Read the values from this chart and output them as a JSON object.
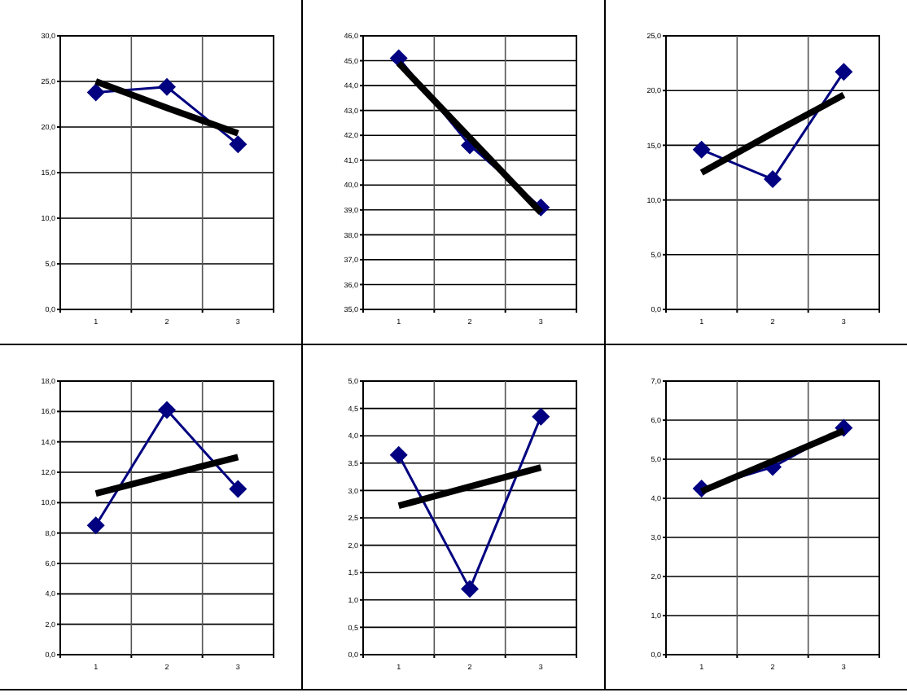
{
  "chart_data": [
    {
      "type": "line",
      "categories": [
        "1",
        "2",
        "3"
      ],
      "ylim": [
        0,
        30
      ],
      "yticks": [
        {
          "value": 0,
          "label": "0,0"
        },
        {
          "value": 5,
          "label": "5,0"
        },
        {
          "value": 10,
          "label": "10,0"
        },
        {
          "value": 15,
          "label": "15,0"
        },
        {
          "value": 20,
          "label": "20,0"
        },
        {
          "value": 25,
          "label": "25,0"
        },
        {
          "value": 30,
          "label": "30,0"
        }
      ],
      "grid": true,
      "series": [
        {
          "color": "#000080",
          "marker": "diamond",
          "values": [
            23.8,
            24.4,
            18.1
          ]
        },
        {
          "color": "#000000",
          "marker": "none",
          "values": [
            25.0,
            22.1,
            19.3
          ]
        }
      ]
    },
    {
      "type": "line",
      "categories": [
        "1",
        "2",
        "3"
      ],
      "ylim": [
        35,
        46
      ],
      "yticks": [
        {
          "value": 35,
          "label": "35,0"
        },
        {
          "value": 36,
          "label": "36,0"
        },
        {
          "value": 37,
          "label": "37,0"
        },
        {
          "value": 38,
          "label": "38,0"
        },
        {
          "value": 39,
          "label": "39,0"
        },
        {
          "value": 40,
          "label": "40,0"
        },
        {
          "value": 41,
          "label": "41,0"
        },
        {
          "value": 42,
          "label": "42,0"
        },
        {
          "value": 43,
          "label": "43,0"
        },
        {
          "value": 44,
          "label": "44,0"
        },
        {
          "value": 45,
          "label": "45,0"
        },
        {
          "value": 46,
          "label": "46,0"
        }
      ],
      "grid": true,
      "series": [
        {
          "color": "#000080",
          "marker": "diamond",
          "values": [
            45.1,
            41.6,
            39.1
          ]
        },
        {
          "color": "#000000",
          "marker": "none",
          "values": [
            44.9,
            41.9,
            38.9
          ]
        }
      ]
    },
    {
      "type": "line",
      "categories": [
        "1",
        "2",
        "3"
      ],
      "ylim": [
        0,
        25
      ],
      "yticks": [
        {
          "value": 0,
          "label": "0,0"
        },
        {
          "value": 5,
          "label": "5,0"
        },
        {
          "value": 10,
          "label": "10,0"
        },
        {
          "value": 15,
          "label": "15,0"
        },
        {
          "value": 20,
          "label": "20,0"
        },
        {
          "value": 25,
          "label": "25,0"
        }
      ],
      "grid": true,
      "series": [
        {
          "color": "#000080",
          "marker": "diamond",
          "values": [
            14.6,
            11.9,
            21.7
          ]
        },
        {
          "color": "#000000",
          "marker": "none",
          "values": [
            12.5,
            16.1,
            19.6
          ]
        }
      ]
    },
    {
      "type": "line",
      "categories": [
        "1",
        "2",
        "3"
      ],
      "ylim": [
        0,
        18
      ],
      "yticks": [
        {
          "value": 0,
          "label": "0,0"
        },
        {
          "value": 2,
          "label": "2,0"
        },
        {
          "value": 4,
          "label": "4,0"
        },
        {
          "value": 6,
          "label": "6,0"
        },
        {
          "value": 8,
          "label": "8,0"
        },
        {
          "value": 10,
          "label": "10,0"
        },
        {
          "value": 12,
          "label": "12,0"
        },
        {
          "value": 14,
          "label": "14,0"
        },
        {
          "value": 16,
          "label": "16,0"
        },
        {
          "value": 18,
          "label": "18,0"
        }
      ],
      "grid": true,
      "series": [
        {
          "color": "#000080",
          "marker": "diamond",
          "values": [
            8.5,
            16.1,
            10.9
          ]
        },
        {
          "color": "#000000",
          "marker": "none",
          "values": [
            10.6,
            11.8,
            13.0
          ]
        }
      ]
    },
    {
      "type": "line",
      "categories": [
        "1",
        "2",
        "3"
      ],
      "ylim": [
        0,
        5
      ],
      "yticks": [
        {
          "value": 0,
          "label": "0,0"
        },
        {
          "value": 0.5,
          "label": "0,5"
        },
        {
          "value": 1,
          "label": "1,0"
        },
        {
          "value": 1.5,
          "label": "1,5"
        },
        {
          "value": 2,
          "label": "2,0"
        },
        {
          "value": 2.5,
          "label": "2,5"
        },
        {
          "value": 3,
          "label": "3,0"
        },
        {
          "value": 3.5,
          "label": "3,5"
        },
        {
          "value": 4,
          "label": "4,0"
        },
        {
          "value": 4.5,
          "label": "4,5"
        },
        {
          "value": 5,
          "label": "5,0"
        }
      ],
      "grid": true,
      "series": [
        {
          "color": "#000080",
          "marker": "diamond",
          "values": [
            3.65,
            1.2,
            4.35
          ]
        },
        {
          "color": "#000000",
          "marker": "none",
          "values": [
            2.72,
            3.07,
            3.42
          ]
        }
      ]
    },
    {
      "type": "line",
      "categories": [
        "1",
        "2",
        "3"
      ],
      "ylim": [
        0,
        7
      ],
      "yticks": [
        {
          "value": 0,
          "label": "0,0"
        },
        {
          "value": 1,
          "label": "1,0"
        },
        {
          "value": 2,
          "label": "2,0"
        },
        {
          "value": 3,
          "label": "3,0"
        },
        {
          "value": 4,
          "label": "4,0"
        },
        {
          "value": 5,
          "label": "5,0"
        },
        {
          "value": 6,
          "label": "6,0"
        },
        {
          "value": 7,
          "label": "7,0"
        }
      ],
      "grid": true,
      "series": [
        {
          "color": "#000080",
          "marker": "diamond",
          "values": [
            4.25,
            4.8,
            5.8
          ]
        },
        {
          "color": "#000000",
          "marker": "none",
          "values": [
            4.18,
            4.95,
            5.73
          ]
        }
      ]
    }
  ]
}
